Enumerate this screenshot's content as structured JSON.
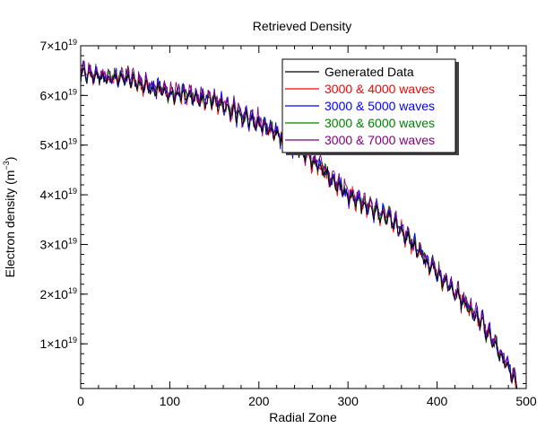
{
  "chart_data": {
    "type": "line",
    "title": "Retrieved Density",
    "xlabel": "Radial Zone",
    "ylabel": {
      "base": "Electron density (m",
      "exp": "−3",
      "close": ")"
    },
    "xlim": [
      0,
      500
    ],
    "ylim": [
      1e+18,
      7e+19
    ],
    "x_ticks": [
      0,
      100,
      200,
      300,
      400,
      500
    ],
    "x_tick_labels": [
      "0",
      "100",
      "200",
      "300",
      "400",
      "500"
    ],
    "y_ticks": [
      1e+19,
      2e+19,
      3e+19,
      4e+19,
      5e+19,
      6e+19,
      7e+19
    ],
    "y_tick_labels": [
      {
        "mant": "1",
        "pre": "×10",
        "exp": "19"
      },
      {
        "mant": "2",
        "pre": "×10",
        "exp": "19"
      },
      {
        "mant": "3",
        "pre": "×10",
        "exp": "19"
      },
      {
        "mant": "4",
        "pre": "×10",
        "exp": "19"
      },
      {
        "mant": "5",
        "pre": "×10",
        "exp": "19"
      },
      {
        "mant": "6",
        "pre": "×10",
        "exp": "19"
      },
      {
        "mant": "7",
        "pre": "×10",
        "exp": "19"
      }
    ],
    "legend_position": "top-right",
    "trend_knots": {
      "x": [
        0,
        50,
        100,
        150,
        200,
        250,
        300,
        350,
        400,
        450,
        490
      ],
      "y": [
        6.45e+19,
        6.35e+19,
        6.05e+19,
        5.9e+19,
        5.45e+19,
        4.9e+19,
        4e+19,
        3.5e+19,
        2.45e+19,
        1.45e+19,
        2e+18
      ]
    },
    "series": [
      {
        "name": "Generated Data",
        "color": "#000000"
      },
      {
        "name": "3000 & 4000 waves",
        "color": "#ff0000"
      },
      {
        "name": "3000 & 5000 waves",
        "color": "#0000ff"
      },
      {
        "name": "3000 & 6000 waves",
        "color": "#008000"
      },
      {
        "name": "3000 & 7000 waves",
        "color": "#800080"
      }
    ]
  }
}
